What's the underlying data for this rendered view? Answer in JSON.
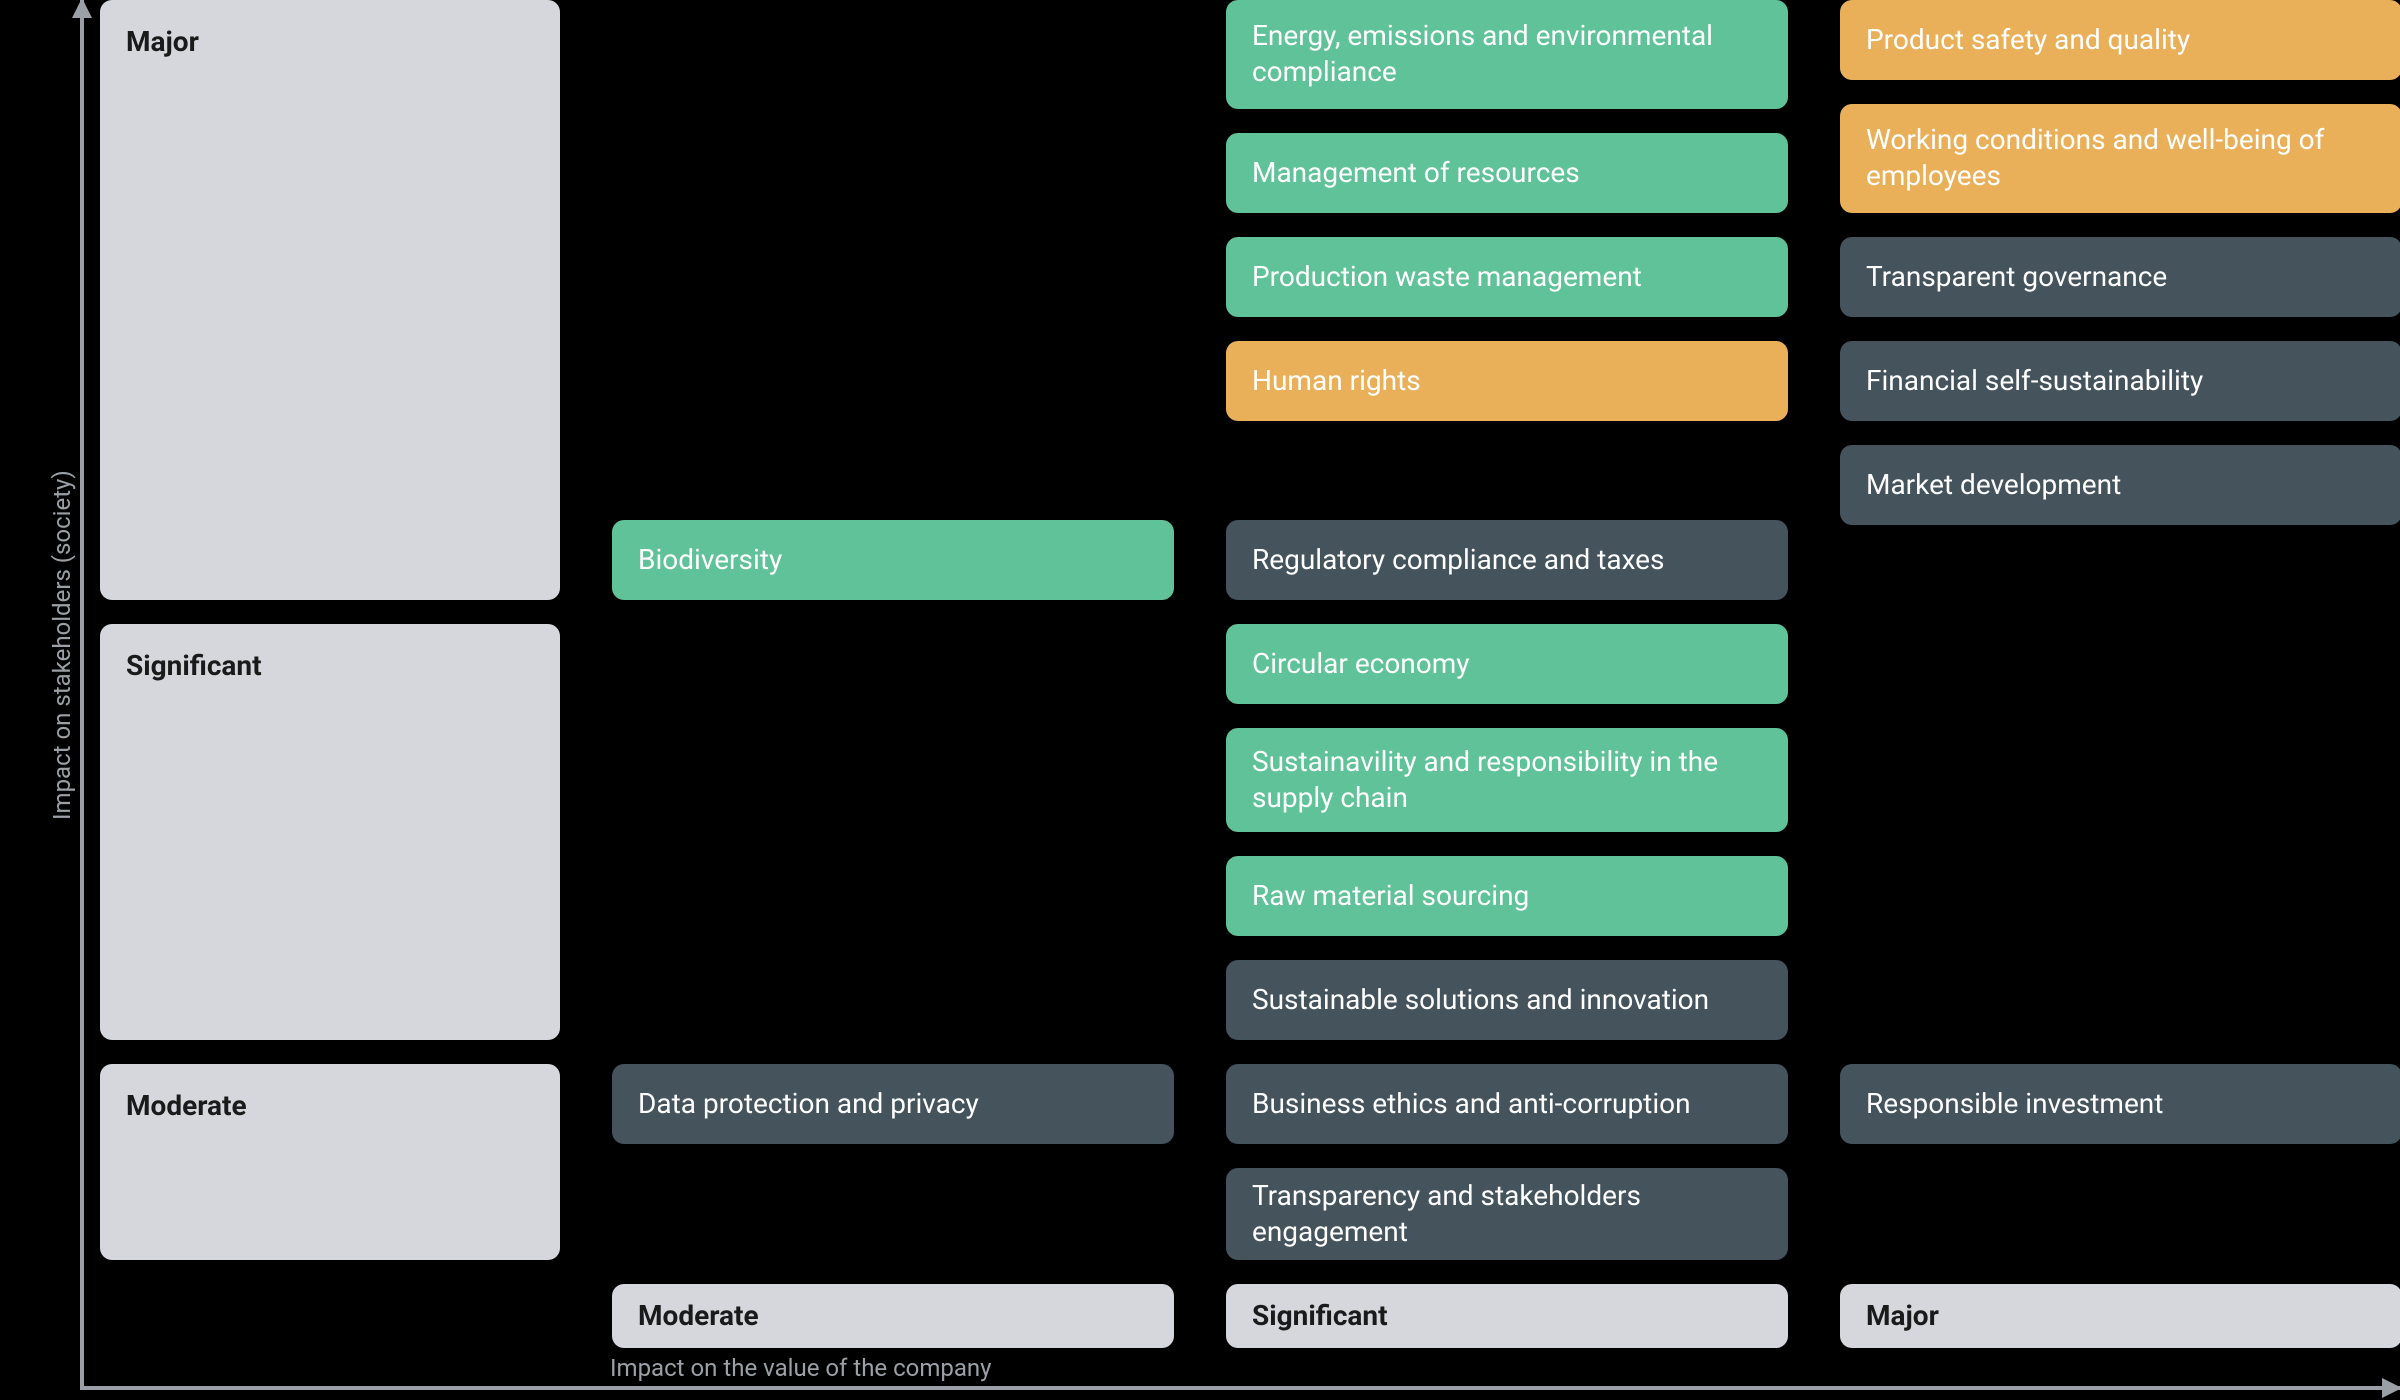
{
  "type": "materiality-matrix",
  "background_color": "#000000",
  "axis_color": "#9aa0a6",
  "label_color": "#9aa0a6",
  "label_fontsize": 24,
  "tile_fontsize": 28,
  "tile_radius": 12,
  "colors": {
    "green": {
      "bg": "#5fc298",
      "text": "#ffffff"
    },
    "orange": {
      "bg": "#e9b059",
      "text": "#ffffff"
    },
    "slate": {
      "bg": "#44535c",
      "text": "#ffffff"
    },
    "header": {
      "bg": "#d5d7dc",
      "text": "#1a1a1a"
    }
  },
  "axes": {
    "x_label": "Impact on the value of the company",
    "y_label": "Impact on stakeholders (society)",
    "x_categories": [
      "Moderate",
      "Significant",
      "Major"
    ],
    "y_categories": [
      "Major",
      "Significant",
      "Moderate"
    ]
  },
  "cells": {
    "major_moderate": [],
    "major_significant": [
      {
        "label": "Energy, emissions and environmental compliance",
        "color": "green"
      },
      {
        "label": "Management of resources",
        "color": "green"
      },
      {
        "label": "Production waste management",
        "color": "green"
      },
      {
        "label": "Human rights",
        "color": "orange"
      }
    ],
    "major_significant_bottom": [
      {
        "label": "Regulatory compliance and taxes",
        "color": "slate"
      }
    ],
    "major_moderate_bottom": [
      {
        "label": "Biodiversity",
        "color": "green"
      }
    ],
    "major_major": [
      {
        "label": "Product safety and quality",
        "color": "orange"
      },
      {
        "label": "Working conditions and well-being of employees",
        "color": "orange"
      },
      {
        "label": "Transparent governance",
        "color": "slate"
      },
      {
        "label": "Financial self-sustainability",
        "color": "slate"
      },
      {
        "label": "Market development",
        "color": "slate"
      }
    ],
    "significant_moderate": [],
    "significant_significant": [
      {
        "label": "Circular economy",
        "color": "green"
      },
      {
        "label": "Sustainavility and responsibility in the supply chain",
        "color": "green"
      },
      {
        "label": "Raw material sourcing",
        "color": "green"
      },
      {
        "label": "Sustainable solutions and innovation",
        "color": "slate"
      }
    ],
    "significant_major": [],
    "moderate_moderate": [
      {
        "label": "Data protection and privacy",
        "color": "slate"
      }
    ],
    "moderate_significant": [
      {
        "label": "Business ethics and anti-corruption",
        "color": "slate"
      },
      {
        "label": "Transparency and stakeholders engagement",
        "color": "slate"
      }
    ],
    "moderate_major": [
      {
        "label": "Responsible investment",
        "color": "slate"
      }
    ]
  }
}
